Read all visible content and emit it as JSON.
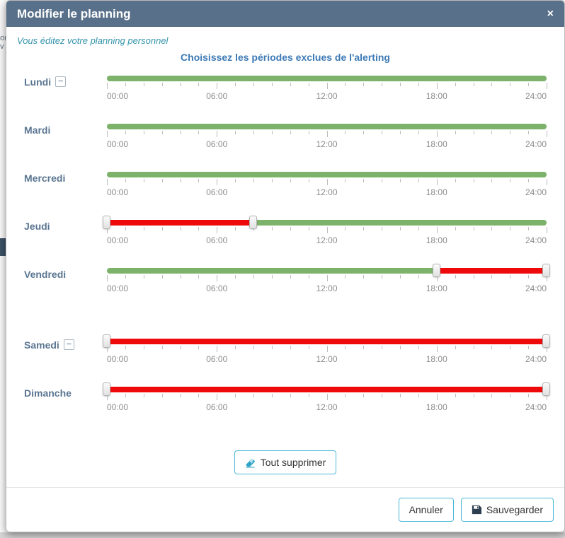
{
  "background": {
    "fragments": [
      "or",
      "v"
    ]
  },
  "modal": {
    "title": "Modifier le planning",
    "close_label": "×",
    "subtitle": "Vous éditez votre planning personnel",
    "heading": "Choisissez les périodes exclues de l'alerting",
    "minus_label": "−",
    "tick_labels": [
      "00:00",
      "06:00",
      "12:00",
      "18:00",
      "24:00"
    ],
    "days": [
      {
        "label": "Lundi",
        "minus": true,
        "excluded": null
      },
      {
        "label": "Mardi",
        "minus": false,
        "excluded": null
      },
      {
        "label": "Mercredi",
        "minus": false,
        "excluded": null
      },
      {
        "label": "Jeudi",
        "minus": false,
        "excluded": [
          0,
          8
        ]
      },
      {
        "label": "Vendredi",
        "minus": false,
        "excluded": [
          18,
          24
        ]
      },
      {
        "label": "Samedi",
        "minus": true,
        "excluded": [
          0,
          24
        ],
        "extra_gap": true
      },
      {
        "label": "Dimanche",
        "minus": false,
        "excluded": [
          0,
          24
        ]
      }
    ],
    "clear_button": "Tout supprimer",
    "footer": {
      "cancel": "Annuler",
      "save": "Sauvegarder"
    }
  },
  "colors": {
    "header_bg": "#587089",
    "green": "#7cb26a",
    "red": "#ee0a0a",
    "heading_blue": "#3d7ab5",
    "subtitle_teal": "#3494ab",
    "button_border": "#4bb8d8",
    "day_label": "#5a7591"
  }
}
